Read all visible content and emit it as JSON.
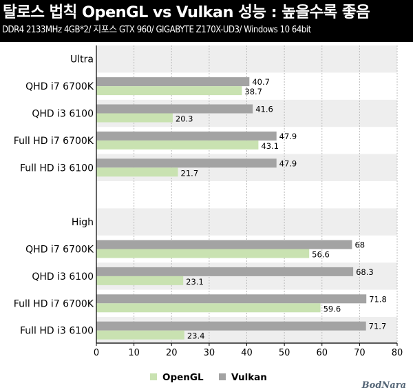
{
  "header": {
    "title": "탈로스 법칙 OpenGL vs Vulkan 성능 : 높을수록 좋음",
    "subtitle": "DDR4 2133MHz 4GB*2/ 지포스 GTX 960/ GIGABYTE Z170X-UD3/ Windows 10 64bit"
  },
  "watermark": "BodNara",
  "colors": {
    "opengl": "#c9e2b1",
    "vulkan": "#a3a3a3",
    "band": "#eeeeee",
    "grid": "#bbbbbb"
  },
  "chart_data": {
    "type": "bar",
    "orientation": "horizontal",
    "title": "탈로스 법칙 OpenGL vs Vulkan 성능 : 높을수록 좋음",
    "xlim": [
      0,
      80
    ],
    "xticks": [
      0,
      10,
      20,
      30,
      40,
      50,
      60,
      70,
      80
    ],
    "grid": true,
    "legend_position": "bottom",
    "groups": [
      {
        "label": "Ultra",
        "categories": [
          {
            "label": "QHD i7 6700K",
            "opengl": 38.7,
            "vulkan": 40.7
          },
          {
            "label": "QHD i3 6100",
            "opengl": 20.3,
            "vulkan": 41.6
          },
          {
            "label": "Full HD i7 6700K",
            "opengl": 43.1,
            "vulkan": 47.9
          },
          {
            "label": "Full HD i3 6100",
            "opengl": 21.7,
            "vulkan": 47.9
          }
        ]
      },
      {
        "label": "High",
        "categories": [
          {
            "label": "QHD i7 6700K",
            "opengl": 56.6,
            "vulkan": 68
          },
          {
            "label": "QHD i3 6100",
            "opengl": 23.1,
            "vulkan": 68.3
          },
          {
            "label": "Full HD i7 6700K",
            "opengl": 59.6,
            "vulkan": 71.8
          },
          {
            "label": "Full HD i3 6100",
            "opengl": 23.4,
            "vulkan": 71.7
          }
        ]
      }
    ],
    "series": [
      {
        "name": "OpenGL",
        "key": "opengl"
      },
      {
        "name": "Vulkan",
        "key": "vulkan"
      }
    ]
  }
}
